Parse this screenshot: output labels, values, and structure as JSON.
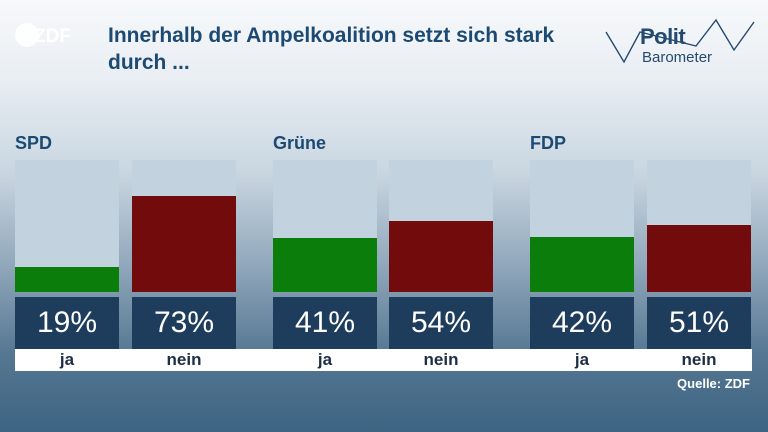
{
  "logo_text": "ZDF",
  "title": "Innerhalb der Ampelkoalition setzt sich stark durch ...",
  "brand": {
    "word1": "Polit",
    "word2": "Barometer"
  },
  "source": "Quelle: ZDF",
  "colors": {
    "ja": "#0a7d0a",
    "nein": "#720c0c",
    "track": "#c3d2df",
    "box": "#1e3d5c",
    "title": "#1d4a73"
  },
  "chart_data": {
    "type": "bar",
    "title": "Innerhalb der Ampelkoalition setzt sich stark durch ...",
    "ylim": [
      0,
      100
    ],
    "unit": "%",
    "groups": [
      {
        "name": "SPD",
        "bars": [
          {
            "label": "ja",
            "value": 19,
            "text": "19%"
          },
          {
            "label": "nein",
            "value": 73,
            "text": "73%"
          }
        ]
      },
      {
        "name": "Grüne",
        "bars": [
          {
            "label": "ja",
            "value": 41,
            "text": "41%"
          },
          {
            "label": "nein",
            "value": 54,
            "text": "54%"
          }
        ]
      },
      {
        "name": "FDP",
        "bars": [
          {
            "label": "ja",
            "value": 42,
            "text": "42%"
          },
          {
            "label": "nein",
            "value": 51,
            "text": "51%"
          }
        ]
      }
    ]
  }
}
